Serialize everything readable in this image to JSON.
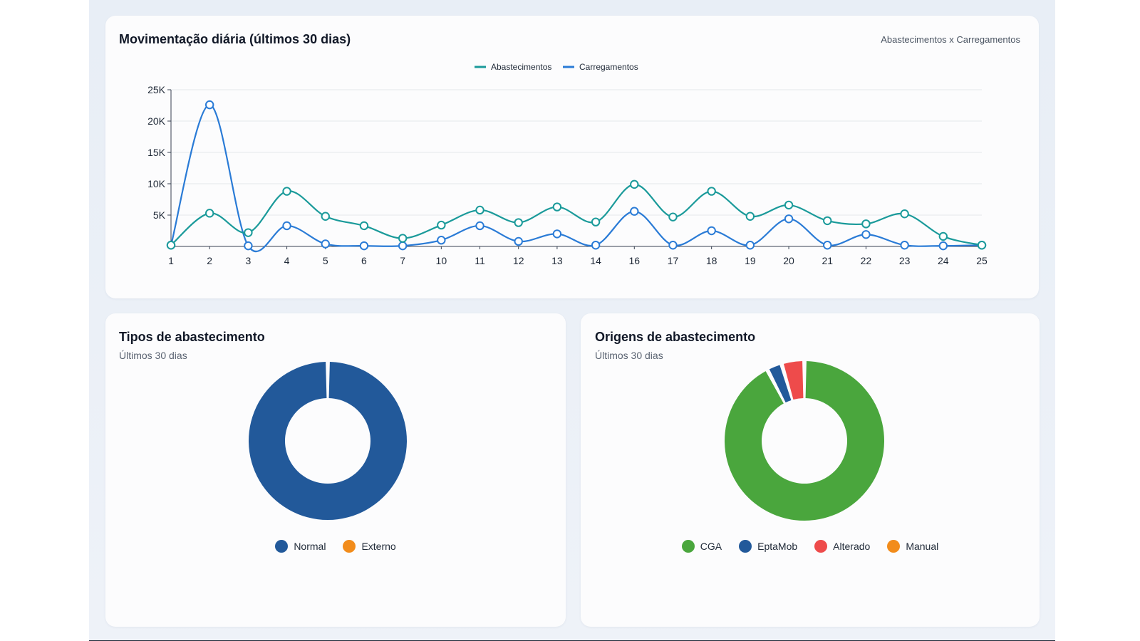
{
  "daily": {
    "title": "Movimentação diária (últimos 30 dias)",
    "note": "Abastecimentos x Carregamentos",
    "chart_data": {
      "type": "line",
      "categories": [
        "1",
        "2",
        "3",
        "4",
        "5",
        "6",
        "7",
        "10",
        "11",
        "12",
        "13",
        "14",
        "16",
        "17",
        "18",
        "19",
        "20",
        "21",
        "22",
        "23",
        "24",
        "25"
      ],
      "series": [
        {
          "name": "Abastecimentos",
          "color": "#1a9a9a",
          "values": [
            200,
            5300,
            2200,
            8800,
            4800,
            3300,
            1300,
            3400,
            5800,
            3800,
            6300,
            3900,
            9900,
            4700,
            8800,
            4800,
            6600,
            4100,
            3600,
            5200,
            1600,
            200
          ]
        },
        {
          "name": "Carregamentos",
          "color": "#2a7bd6",
          "values": [
            200,
            22600,
            100,
            3300,
            400,
            100,
            100,
            1000,
            3300,
            800,
            2000,
            200,
            5600,
            200,
            2500,
            200,
            4400,
            200,
            1900,
            200,
            100,
            200
          ]
        }
      ],
      "ylim": [
        0,
        25000
      ],
      "yticks": [
        "5K",
        "10K",
        "15K",
        "20K",
        "25K"
      ],
      "ytick_values": [
        5000,
        10000,
        15000,
        20000,
        25000
      ],
      "grid": true,
      "legend": "top-center"
    }
  },
  "types": {
    "title": "Tipos de abastecimento",
    "subtitle": "Últimos 30 dias",
    "chart_data": {
      "type": "pie",
      "labels": [
        "Normal",
        "Externo"
      ],
      "values": [
        100,
        0
      ],
      "colors": [
        "#22599a",
        "#f28c1b"
      ]
    }
  },
  "origins": {
    "title": "Origens de abastecimento",
    "subtitle": "Últimos 30 dias",
    "chart_data": {
      "type": "pie",
      "labels": [
        "CGA",
        "EptaMob",
        "Alterado",
        "Manual"
      ],
      "values": [
        90.5,
        3,
        4.5,
        0
      ],
      "colors": [
        "#4aa63d",
        "#22599a",
        "#ee4b4b",
        "#f28c1b"
      ]
    }
  }
}
